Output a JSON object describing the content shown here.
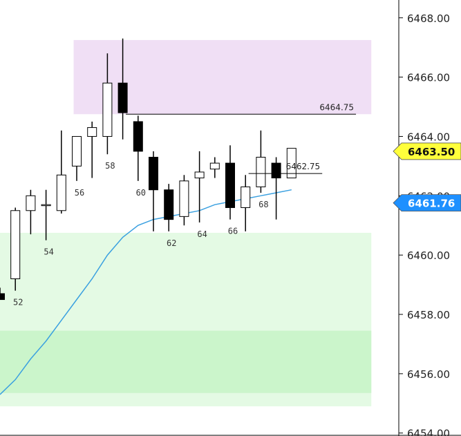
{
  "chart_data": {
    "type": "candlestick",
    "y_axis": {
      "range": [
        6453.9,
        6468.6
      ],
      "tick_step": 2,
      "tick_labels": [
        "6454.00",
        "6456.00",
        "6458.00",
        "6460.00",
        "6462.00",
        "6464.00",
        "6466.00",
        "6468.00"
      ],
      "position": "right"
    },
    "bar_count_visible": 20,
    "candles": [
      {
        "i": 51,
        "open": 6458.7,
        "high": 6458.9,
        "low": 6458.5,
        "close": 6458.5
      },
      {
        "i": 52,
        "open": 6459.2,
        "high": 6461.6,
        "low": 6458.8,
        "close": 6461.5
      },
      {
        "i": 53,
        "open": 6461.5,
        "high": 6462.2,
        "low": 6460.7,
        "close": 6462.0
      },
      {
        "i": 54,
        "open": 6461.7,
        "high": 6462.2,
        "low": 6460.5,
        "close": 6461.7
      },
      {
        "i": 55,
        "open": 6461.5,
        "high": 6464.2,
        "low": 6461.4,
        "close": 6462.7
      },
      {
        "i": 56,
        "open": 6463.0,
        "high": 6464.0,
        "low": 6462.5,
        "close": 6464.0
      },
      {
        "i": 57,
        "open": 6464.0,
        "high": 6464.5,
        "low": 6462.6,
        "close": 6464.3
      },
      {
        "i": 58,
        "open": 6464.0,
        "high": 6466.8,
        "low": 6463.4,
        "close": 6465.8
      },
      {
        "i": 59,
        "open": 6465.8,
        "high": 6467.3,
        "low": 6463.9,
        "close": 6464.8
      },
      {
        "i": 60,
        "open": 6464.5,
        "high": 6464.7,
        "low": 6462.5,
        "close": 6463.5
      },
      {
        "i": 61,
        "open": 6463.3,
        "high": 6463.5,
        "low": 6460.8,
        "close": 6462.2
      },
      {
        "i": 62,
        "open": 6462.2,
        "high": 6462.4,
        "low": 6460.8,
        "close": 6461.2
      },
      {
        "i": 63,
        "open": 6461.3,
        "high": 6462.7,
        "low": 6461.0,
        "close": 6462.5
      },
      {
        "i": 64,
        "open": 6462.6,
        "high": 6463.5,
        "low": 6461.1,
        "close": 6462.8
      },
      {
        "i": 65,
        "open": 6462.9,
        "high": 6463.3,
        "low": 6462.6,
        "close": 6463.1
      },
      {
        "i": 66,
        "open": 6463.1,
        "high": 6463.7,
        "low": 6461.2,
        "close": 6461.6
      },
      {
        "i": 67,
        "open": 6461.6,
        "high": 6462.7,
        "low": 6460.8,
        "close": 6462.3
      },
      {
        "i": 68,
        "open": 6462.3,
        "high": 6464.2,
        "low": 6462.1,
        "close": 6463.3
      },
      {
        "i": 69,
        "open": 6463.1,
        "high": 6463.3,
        "low": 6461.2,
        "close": 6462.6
      },
      {
        "i": 70,
        "open": 6462.6,
        "high": 6463.6,
        "low": 6462.6,
        "close": 6463.6
      }
    ],
    "bar_number_labels": [
      {
        "i": 52,
        "text": "52"
      },
      {
        "i": 54,
        "text": "54"
      },
      {
        "i": 56,
        "text": "56"
      },
      {
        "i": 58,
        "text": "58"
      },
      {
        "i": 60,
        "text": "60"
      },
      {
        "i": 62,
        "text": "62"
      },
      {
        "i": 64,
        "text": "64"
      },
      {
        "i": 66,
        "text": "66"
      },
      {
        "i": 68,
        "text": "68"
      }
    ],
    "moving_average": [
      {
        "i": 51,
        "y": 6455.3
      },
      {
        "i": 52,
        "y": 6455.8
      },
      {
        "i": 53,
        "y": 6456.5
      },
      {
        "i": 54,
        "y": 6457.1
      },
      {
        "i": 55,
        "y": 6457.8
      },
      {
        "i": 56,
        "y": 6458.5
      },
      {
        "i": 57,
        "y": 6459.2
      },
      {
        "i": 58,
        "y": 6460.0
      },
      {
        "i": 59,
        "y": 6460.6
      },
      {
        "i": 60,
        "y": 6461.0
      },
      {
        "i": 61,
        "y": 6461.2
      },
      {
        "i": 62,
        "y": 6461.3
      },
      {
        "i": 63,
        "y": 6461.4
      },
      {
        "i": 64,
        "y": 6461.5
      },
      {
        "i": 65,
        "y": 6461.7
      },
      {
        "i": 66,
        "y": 6461.8
      },
      {
        "i": 67,
        "y": 6461.9
      },
      {
        "i": 68,
        "y": 6462.0
      },
      {
        "i": 69,
        "y": 6462.1
      },
      {
        "i": 70,
        "y": 6462.2
      }
    ],
    "zones": [
      {
        "low": 6464.75,
        "high": 6467.25,
        "from_i": 55.8,
        "to_i": 75.2,
        "color": "#f0dff5"
      },
      {
        "low": 6454.9,
        "high": 6460.75,
        "from_i": 50.0,
        "to_i": 75.2,
        "color": "#e4fae4"
      },
      {
        "low": 6455.35,
        "high": 6457.45,
        "from_i": 50.0,
        "to_i": 75.2,
        "color": "#cbf5cb"
      }
    ],
    "level_lines": [
      {
        "value": 6464.75,
        "label": "6464.75",
        "from_i": 59.2,
        "to_i": 74.2
      },
      {
        "value": 6462.75,
        "label": "6462.75",
        "from_i": 67.2,
        "to_i": 72.0
      }
    ],
    "price_tags": [
      {
        "value": 6463.5,
        "text": "6463.50",
        "color": "#ffff3b",
        "text_color": "#111111"
      },
      {
        "value": 6461.76,
        "text": "6461.76",
        "color": "#1e90ff",
        "text_color": "#ffffff"
      }
    ],
    "colors": {
      "up_body": "#ffffff",
      "down_body": "#000000",
      "wick": "#000000",
      "moving_average": "#3aa0e0"
    }
  }
}
